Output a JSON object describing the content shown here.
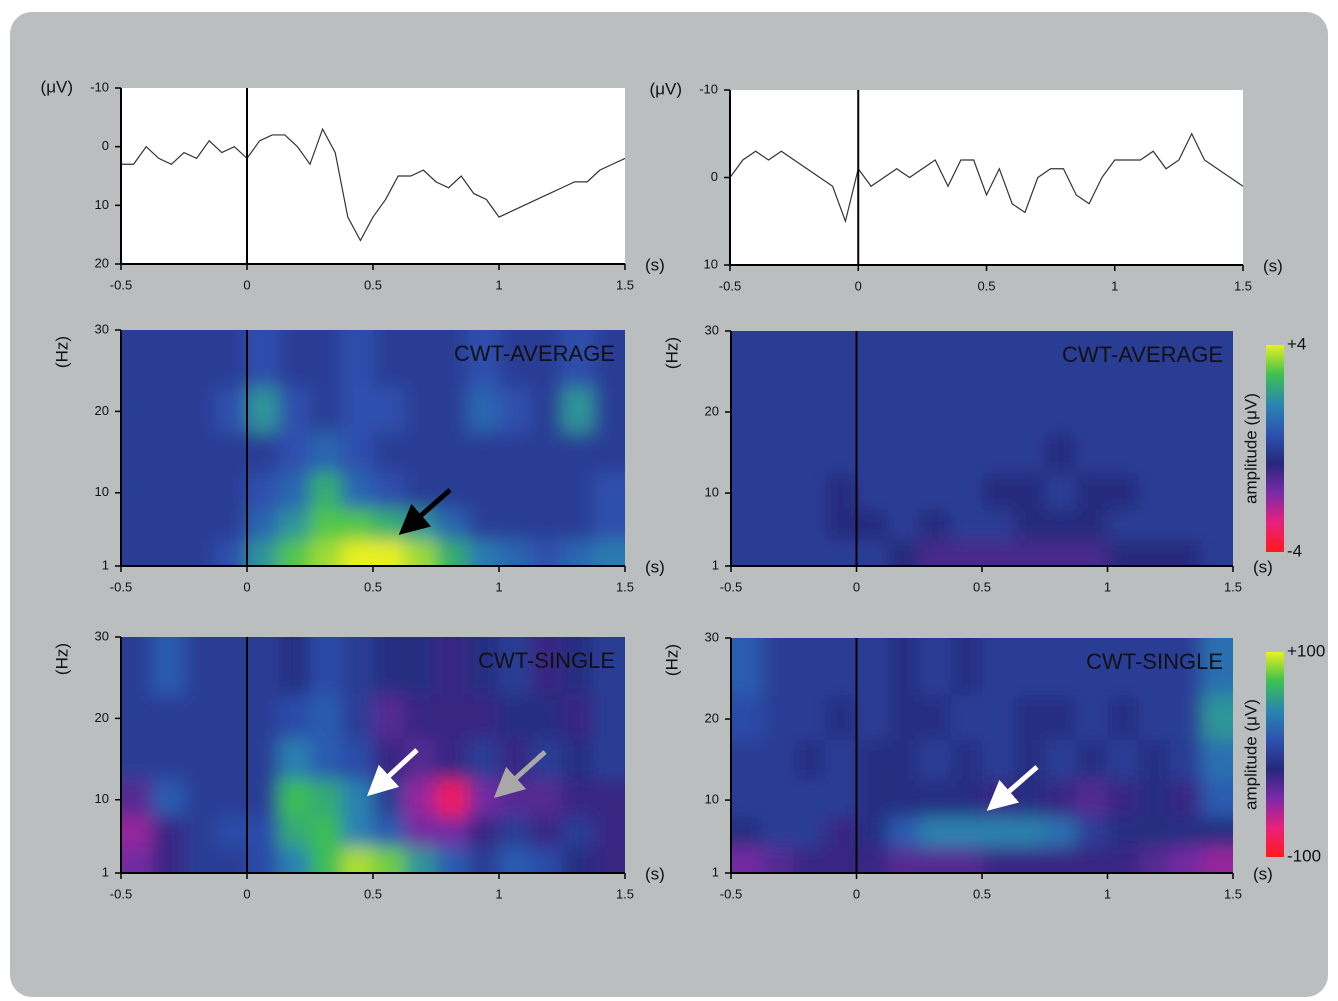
{
  "chart_data": [
    {
      "type": "line",
      "ylabel": "(μV)",
      "xlabel": "(s)",
      "color": "#333333",
      "x": [
        -0.5,
        -0.45,
        -0.4,
        -0.35,
        -0.3,
        -0.25,
        -0.2,
        -0.15,
        -0.1,
        -0.05,
        0,
        0.05,
        0.1,
        0.15,
        0.2,
        0.25,
        0.3,
        0.35,
        0.4,
        0.45,
        0.5,
        0.55,
        0.6,
        0.65,
        0.7,
        0.75,
        0.8,
        0.85,
        0.9,
        0.95,
        1.0,
        1.05,
        1.1,
        1.15,
        1.2,
        1.25,
        1.3,
        1.35,
        1.4,
        1.45,
        1.5
      ],
      "values": [
        3,
        3,
        0,
        2,
        3,
        1,
        2,
        -1,
        1,
        0,
        2,
        -1,
        -2,
        -2,
        0,
        3,
        -3,
        1,
        12,
        16,
        12,
        9,
        5,
        5,
        4,
        6,
        7,
        5,
        8,
        9,
        12,
        11,
        10,
        9,
        8,
        7,
        6,
        6,
        4,
        3,
        2
      ],
      "xlim": [
        -0.5,
        1.5
      ],
      "xticks": [
        -0.5,
        0,
        0.5,
        1,
        1.5
      ],
      "ylim": [
        -10,
        20
      ],
      "yticks": [
        -10,
        0,
        10,
        20
      ],
      "y_inverted": true
    },
    {
      "type": "line",
      "ylabel": "(μV)",
      "xlabel": "(s)",
      "color": "#333333",
      "x": [
        -0.5,
        -0.45,
        -0.4,
        -0.35,
        -0.3,
        -0.25,
        -0.2,
        -0.15,
        -0.1,
        -0.05,
        0,
        0.05,
        0.1,
        0.15,
        0.2,
        0.25,
        0.3,
        0.35,
        0.4,
        0.45,
        0.5,
        0.55,
        0.6,
        0.65,
        0.7,
        0.75,
        0.8,
        0.85,
        0.9,
        0.95,
        1.0,
        1.05,
        1.1,
        1.15,
        1.2,
        1.25,
        1.3,
        1.35,
        1.4,
        1.45,
        1.5
      ],
      "values": [
        0,
        -2,
        -3,
        -2,
        -3,
        -2,
        -1,
        0,
        1,
        5,
        -1,
        1,
        0,
        -1,
        0,
        -1,
        -2,
        1,
        -2,
        -2,
        2,
        -1,
        3,
        4,
        0,
        -1,
        -1,
        2,
        3,
        0,
        -2,
        -2,
        -2,
        -3,
        -1,
        -2,
        -5,
        -2,
        -1,
        0,
        1
      ],
      "xlim": [
        -0.5,
        1.5
      ],
      "xticks": [
        -0.5,
        0,
        0.5,
        1,
        1.5
      ],
      "ylim": [
        -10,
        10
      ],
      "yticks": [
        -10,
        0,
        10
      ],
      "y_inverted": true
    },
    {
      "type": "heatmap",
      "title": "CWT-AVERAGE",
      "ylabel": "(Hz)",
      "xlabel": "(s)",
      "x": [
        -0.4375,
        -0.3125,
        -0.1875,
        -0.0625,
        0.0625,
        0.1875,
        0.3125,
        0.4375,
        0.5625,
        0.6875,
        0.8125,
        0.9375,
        1.0625,
        1.1875,
        1.3125,
        1.4375
      ],
      "y": [
        2.5,
        6,
        10,
        15,
        20,
        26
      ],
      "z": [
        [
          0,
          0,
          0,
          0.5,
          2,
          3,
          3.5,
          4,
          4,
          3.5,
          2.5,
          1.5,
          1,
          0.5,
          1,
          1.5
        ],
        [
          0,
          0,
          0,
          0,
          1,
          2,
          3,
          3,
          2.5,
          2,
          1,
          0,
          0,
          0,
          0,
          0.5
        ],
        [
          0,
          0,
          0,
          0,
          0.5,
          1,
          2.5,
          1,
          0.5,
          0,
          0,
          0,
          0,
          0,
          0,
          0.5
        ],
        [
          0,
          0,
          0,
          0,
          0,
          0.5,
          1,
          0.5,
          0,
          0,
          0,
          0,
          0,
          0,
          0,
          0
        ],
        [
          0,
          0,
          0,
          0.5,
          2,
          0.5,
          0,
          0.5,
          0.5,
          0,
          0,
          1,
          0.5,
          0,
          2,
          0
        ],
        [
          0,
          0,
          0,
          0,
          0.5,
          0,
          0,
          0.5,
          0,
          0,
          0,
          0.5,
          0,
          0,
          0.5,
          0
        ]
      ],
      "zlim": [
        -4,
        4
      ],
      "colorscale": [
        "#ff1a1a",
        "#e8207e",
        "#7a2aa6",
        "#26287a",
        "#2d52b0",
        "#2a86b0",
        "#3cc050",
        "#e8f020"
      ],
      "xlim": [
        -0.5,
        1.5
      ],
      "xticks": [
        -0.5,
        0,
        0.5,
        1,
        1.5
      ],
      "ylim": [
        1,
        30
      ],
      "yticks": [
        1,
        10,
        20,
        30
      ]
    },
    {
      "type": "heatmap",
      "title": "CWT-AVERAGE",
      "ylabel": "(Hz)",
      "xlabel": "(s)",
      "x": [
        -0.4375,
        -0.3125,
        -0.1875,
        -0.0625,
        0.0625,
        0.1875,
        0.3125,
        0.4375,
        0.5625,
        0.6875,
        0.8125,
        0.9375,
        1.0625,
        1.1875,
        1.3125,
        1.4375
      ],
      "y": [
        2.5,
        6,
        10,
        15,
        20,
        26
      ],
      "z": [
        [
          0,
          0,
          0,
          0,
          0,
          -0.5,
          -1,
          -1,
          -1,
          -1,
          -1,
          -1,
          -0.5,
          -0.5,
          -0.5,
          0
        ],
        [
          0,
          0,
          0,
          -0.5,
          -0.5,
          0,
          -0.5,
          0,
          0,
          -0.5,
          -0.5,
          -0.5,
          0,
          0,
          0,
          0
        ],
        [
          0,
          0,
          0,
          -0.5,
          0,
          0,
          0,
          0,
          -0.5,
          -0.5,
          0,
          -0.5,
          -0.5,
          0,
          0,
          0
        ],
        [
          0,
          0,
          0,
          0,
          0,
          0,
          0,
          0,
          0,
          0,
          -0.5,
          0,
          0,
          0,
          0,
          0
        ],
        [
          0,
          0,
          0,
          0,
          0,
          0,
          0,
          0,
          0,
          0,
          0,
          0,
          0,
          0,
          0,
          0
        ],
        [
          0,
          0,
          0,
          0,
          0,
          0,
          0,
          0,
          0,
          0,
          0,
          0,
          0,
          0,
          0,
          0
        ]
      ],
      "zlim": [
        -4,
        4
      ],
      "colorscale": [
        "#ff1a1a",
        "#e8207e",
        "#7a2aa6",
        "#26287a",
        "#2d52b0",
        "#2a86b0",
        "#3cc050",
        "#e8f020"
      ],
      "colorbar": true,
      "zlabel": "amplitude (μV)",
      "zticks": [
        {
          "value": 4,
          "label": "+4"
        },
        -4
      ],
      "xlim": [
        -0.5,
        1.5
      ],
      "xticks": [
        -0.5,
        0,
        0.5,
        1,
        1.5
      ],
      "ylim": [
        1,
        30
      ],
      "yticks": [
        1,
        10,
        20,
        30
      ]
    },
    {
      "type": "heatmap",
      "title": "CWT-SINGLE",
      "ylabel": "(Hz)",
      "xlabel": "(s)",
      "x": [
        -0.4375,
        -0.3125,
        -0.1875,
        -0.0625,
        0.0625,
        0.1875,
        0.3125,
        0.4375,
        0.5625,
        0.6875,
        0.8125,
        0.9375,
        1.0625,
        1.1875,
        1.3125,
        1.4375
      ],
      "y": [
        2.5,
        6,
        10,
        15,
        20,
        26
      ],
      "z": [
        [
          -40,
          -20,
          0,
          0,
          10,
          40,
          70,
          90,
          80,
          50,
          20,
          0,
          20,
          10,
          -10,
          -20
        ],
        [
          -50,
          -20,
          0,
          10,
          10,
          60,
          70,
          40,
          20,
          -40,
          -40,
          -20,
          0,
          -20,
          0,
          -20
        ],
        [
          -30,
          20,
          0,
          0,
          0,
          70,
          60,
          40,
          0,
          -50,
          -80,
          -40,
          -30,
          -30,
          -20,
          -20
        ],
        [
          0,
          0,
          0,
          0,
          0,
          40,
          20,
          10,
          -20,
          -30,
          -20,
          0,
          -20,
          0,
          -10,
          0
        ],
        [
          0,
          0,
          0,
          0,
          0,
          10,
          20,
          0,
          -30,
          -20,
          -20,
          -20,
          -10,
          -10,
          -20,
          0
        ],
        [
          0,
          20,
          0,
          0,
          0,
          -10,
          10,
          0,
          -10,
          -10,
          -20,
          -10,
          0,
          -20,
          -10,
          0
        ]
      ],
      "zlim": [
        -100,
        100
      ],
      "colorscale": [
        "#ff1a1a",
        "#e8207e",
        "#7a2aa6",
        "#26287a",
        "#2d52b0",
        "#2a86b0",
        "#3cc050",
        "#e8f020"
      ],
      "xlim": [
        -0.5,
        1.5
      ],
      "xticks": [
        -0.5,
        0,
        0.5,
        1,
        1.5
      ],
      "ylim": [
        1,
        30
      ],
      "yticks": [
        1,
        10,
        20,
        30
      ]
    },
    {
      "type": "heatmap",
      "title": "CWT-SINGLE",
      "ylabel": "(Hz)",
      "xlabel": "(s)",
      "x": [
        -0.4375,
        -0.3125,
        -0.1875,
        -0.0625,
        0.0625,
        0.1875,
        0.3125,
        0.4375,
        0.5625,
        0.6875,
        0.8125,
        0.9375,
        1.0625,
        1.1875,
        1.3125,
        1.4375
      ],
      "y": [
        2.5,
        6,
        10,
        15,
        20,
        26
      ],
      "z": [
        [
          -40,
          -30,
          -20,
          -20,
          -20,
          -30,
          -30,
          -30,
          -20,
          -20,
          -20,
          -20,
          -20,
          -30,
          -40,
          -50
        ],
        [
          -10,
          0,
          0,
          -20,
          -10,
          20,
          40,
          40,
          40,
          40,
          30,
          0,
          -10,
          -10,
          -10,
          -10
        ],
        [
          0,
          0,
          0,
          0,
          -10,
          -10,
          -10,
          -10,
          -20,
          -10,
          -20,
          -30,
          -20,
          -10,
          -20,
          20
        ],
        [
          0,
          0,
          -10,
          0,
          -10,
          -10,
          0,
          -10,
          0,
          -10,
          0,
          -10,
          0,
          -10,
          0,
          30
        ],
        [
          10,
          0,
          0,
          -10,
          0,
          -10,
          -10,
          0,
          0,
          -10,
          -10,
          0,
          -10,
          0,
          0,
          50
        ],
        [
          20,
          0,
          0,
          0,
          0,
          -10,
          0,
          -10,
          0,
          0,
          0,
          0,
          0,
          0,
          0,
          30
        ]
      ],
      "zlim": [
        -100,
        100
      ],
      "colorscale": [
        "#ff1a1a",
        "#e8207e",
        "#7a2aa6",
        "#26287a",
        "#2d52b0",
        "#2a86b0",
        "#3cc050",
        "#e8f020"
      ],
      "colorbar": true,
      "zlabel": "amplitude (μV)",
      "zticks": [
        {
          "value": 100,
          "label": "+100"
        },
        -100
      ],
      "xlim": [
        -0.5,
        1.5
      ],
      "xticks": [
        -0.5,
        0,
        0.5,
        1,
        1.5
      ],
      "ylim": [
        1,
        30
      ],
      "yticks": [
        1,
        10,
        20,
        30
      ]
    }
  ]
}
